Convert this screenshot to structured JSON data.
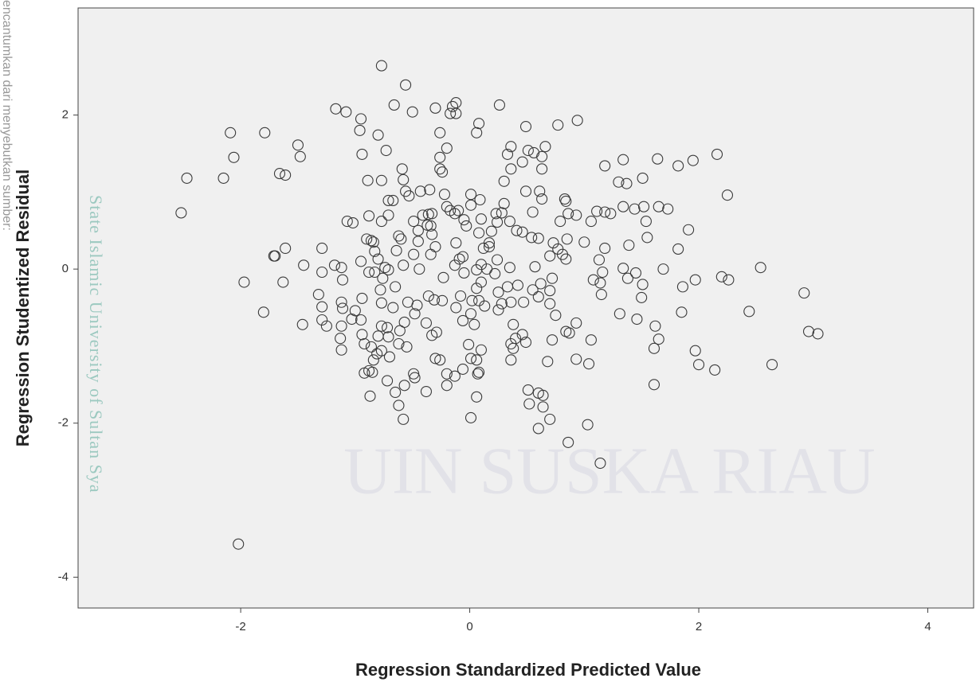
{
  "chart_data": {
    "type": "scatter",
    "x_label": "Regression Standardized Predicted Value",
    "y_label": "Regression Studentized Residual",
    "annotations": [
      "State Islamic University of Sultan Sya",
      "UIN SUSKA RIAU",
      "encantumkan dari menyebutkan sumber:"
    ],
    "xlim": [
      -3.42,
      4.4
    ],
    "ylim": [
      -4.4,
      3.39
    ],
    "xticks": [
      -2,
      0,
      2,
      4
    ],
    "yticks": [
      -4,
      -2,
      0,
      2
    ],
    "marker_color": "#3a3a3a",
    "background_color": "#f0f0f0",
    "x": [
      -2.52,
      -2.47,
      -2.15,
      -2.09,
      -2.06,
      -1.79,
      -1.5,
      -1.48,
      -1.66,
      -1.61,
      -1.97,
      -1.8,
      -2.02,
      -1.7,
      -1.71,
      -1.61,
      -1.63,
      -1.45,
      -1.46,
      -1.29,
      -1.29,
      -1.32,
      -1.29,
      -1.29,
      -1.18,
      -1.12,
      -1.11,
      -1.12,
      -1.12,
      -1.13,
      -1.12,
      -1.07,
      -1.02,
      -1.17,
      -1.08,
      -0.95,
      -0.96,
      -0.94,
      -0.89,
      -0.8,
      -0.73,
      -0.77,
      -0.56,
      -0.66,
      -0.5,
      -0.3,
      -0.15,
      -0.12,
      -0.17,
      -0.12,
      0.08,
      0.06,
      0.26,
      0.49,
      0.77,
      0.94,
      -0.26,
      -0.2,
      -0.26,
      -0.26,
      -0.24,
      -0.59,
      -0.58,
      -0.77,
      -0.71,
      -0.67,
      -0.88,
      -0.77,
      -0.62,
      -0.49,
      -0.41,
      -0.36,
      -0.33,
      -0.43,
      -0.53,
      -0.35,
      -0.22,
      -0.2,
      -0.13,
      -0.05,
      0.01,
      0.01,
      0.09,
      0.19,
      0.08,
      -0.03,
      0.23,
      0.28,
      0.35,
      0.3,
      0.36,
      0.36,
      0.33,
      0.46,
      0.51,
      0.56,
      0.66,
      0.63,
      0.63,
      0.49,
      0.61,
      0.63,
      0.55,
      0.41,
      0.46,
      0.54,
      0.6,
      0.7,
      0.73,
      0.83,
      0.84,
      0.86,
      0.93,
      0.79,
      0.85,
      0.81,
      0.84,
      0.77,
      1.0,
      1.06,
      1.11,
      1.18,
      1.18,
      1.23,
      1.34,
      1.44,
      1.52,
      1.3,
      1.37,
      1.34,
      1.51,
      1.64,
      1.54,
      1.65,
      1.73,
      1.55,
      1.39,
      1.82,
      1.95,
      2.16,
      1.91,
      2.25,
      1.82,
      1.69,
      1.51,
      1.5,
      1.45,
      1.38,
      1.34,
      1.16,
      1.13,
      1.18,
      1.08,
      1.14,
      1.15,
      1.31,
      1.46,
      1.62,
      1.65,
      1.61,
      1.61,
      1.86,
      1.97,
      1.85,
      2.2,
      2.26,
      2.54,
      2.44,
      1.97,
      2.0,
      2.14,
      2.64,
      2.92,
      2.96,
      3.04,
      1.14,
      1.03,
      0.86,
      1.04,
      1.06,
      0.93,
      0.93,
      0.84,
      0.87,
      0.75,
      0.72,
      0.68,
      0.7,
      0.7,
      0.72,
      0.62,
      0.55,
      0.6,
      0.57,
      0.7,
      0.6,
      0.51,
      0.6,
      0.64,
      0.52,
      0.64,
      0.46,
      0.4,
      0.49,
      0.36,
      0.38,
      0.36,
      0.38,
      0.47,
      0.36,
      0.28,
      0.25,
      0.25,
      0.33,
      0.35,
      0.42,
      0.22,
      0.1,
      0.06,
      0.15,
      0.1,
      0.24,
      0.17,
      0.08,
      0.02,
      0.13,
      0.01,
      0.04,
      -0.12,
      -0.06,
      -0.08,
      -0.05,
      -0.01,
      0.01,
      0.06,
      0.1,
      0.08,
      0.07,
      0.06,
      0.01,
      -0.06,
      -0.13,
      -0.2,
      -0.2,
      -0.26,
      -0.3,
      -0.29,
      -0.33,
      -0.38,
      -0.38,
      -0.24,
      -0.31,
      -0.36,
      -0.46,
      -0.54,
      -0.48,
      -0.57,
      -0.61,
      -0.62,
      -0.55,
      -0.49,
      -0.48,
      -0.57,
      -0.62,
      -0.58,
      -0.65,
      -0.72,
      -0.7,
      -0.77,
      -0.81,
      -0.86,
      -0.84,
      -0.88,
      -0.92,
      -0.85,
      -0.87,
      -0.77,
      -0.72,
      -0.8,
      -0.71,
      -0.94,
      -0.92,
      -0.95,
      -1.03,
      -1.0,
      -0.94,
      -0.77,
      -0.78,
      -0.76,
      -0.71,
      -0.74,
      -0.67,
      -0.65,
      -0.58,
      -0.64,
      -0.6,
      -0.49,
      -0.44,
      -0.34,
      -0.3,
      -0.23,
      -0.13,
      -0.09,
      -0.12,
      -0.8,
      -0.83,
      -0.9,
      -0.86,
      -0.84,
      -0.95,
      -0.88,
      -0.83,
      -0.71,
      -0.56,
      -0.37,
      -0.33,
      -0.45,
      -0.34,
      -0.45,
      -0.17,
      -0.1,
      0.17,
      -0.06,
      0.06,
      0.12,
      0.24,
      0.3,
      0.1,
      -1.11,
      -1.25
    ],
    "values": [
      0.73,
      1.18,
      1.18,
      1.77,
      1.45,
      1.77,
      1.61,
      1.46,
      1.24,
      1.22,
      -0.17,
      -0.56,
      -3.57,
      0.17,
      0.17,
      0.27,
      -0.17,
      0.05,
      -0.72,
      0.27,
      -0.04,
      -0.33,
      -0.49,
      -0.66,
      0.05,
      0.02,
      -0.14,
      -0.43,
      -0.74,
      -0.9,
      -1.05,
      0.62,
      0.6,
      2.08,
      2.04,
      1.95,
      1.8,
      1.49,
      1.15,
      1.74,
      1.54,
      2.64,
      2.39,
      2.13,
      2.04,
      2.09,
      2.11,
      2.16,
      2.02,
      2.02,
      1.89,
      1.77,
      2.13,
      1.85,
      1.87,
      1.93,
      1.77,
      1.57,
      1.45,
      1.3,
      1.26,
      1.3,
      1.16,
      1.15,
      0.89,
      0.89,
      0.69,
      0.62,
      0.43,
      0.62,
      0.7,
      0.71,
      0.72,
      1.01,
      0.95,
      1.03,
      0.97,
      0.81,
      0.72,
      0.64,
      0.97,
      0.83,
      0.9,
      0.49,
      0.47,
      0.56,
      0.72,
      0.73,
      0.62,
      1.14,
      1.3,
      1.59,
      1.49,
      1.39,
      1.54,
      1.51,
      1.59,
      1.46,
      1.3,
      1.01,
      1.01,
      0.91,
      0.74,
      0.5,
      0.48,
      0.41,
      0.4,
      0.17,
      0.34,
      0.91,
      0.88,
      0.72,
      0.7,
      0.62,
      0.39,
      0.19,
      0.13,
      0.26,
      0.35,
      0.62,
      0.75,
      0.74,
      1.34,
      0.72,
      0.81,
      0.78,
      0.81,
      1.13,
      1.11,
      1.42,
      1.18,
      1.43,
      0.62,
      0.81,
      0.78,
      0.41,
      0.31,
      1.34,
      1.41,
      1.49,
      0.51,
      0.96,
      0.26,
      0.0,
      -0.2,
      -0.37,
      -0.05,
      -0.12,
      0.01,
      -0.04,
      0.12,
      0.27,
      -0.14,
      -0.18,
      -0.33,
      -0.58,
      -0.65,
      -0.74,
      -0.91,
      -1.03,
      -1.5,
      -0.23,
      -0.14,
      -0.56,
      -0.1,
      -0.14,
      0.02,
      -0.55,
      -1.06,
      -1.24,
      -1.31,
      -1.24,
      -0.31,
      -0.81,
      -0.84,
      -2.52,
      -2.02,
      -2.25,
      -1.23,
      -0.92,
      -1.17,
      -0.7,
      -0.81,
      -0.83,
      -0.6,
      -0.92,
      -1.2,
      -0.45,
      -0.28,
      -0.12,
      -0.19,
      -0.27,
      -0.36,
      0.03,
      -1.95,
      -2.07,
      -1.57,
      -1.61,
      -1.64,
      -1.75,
      -1.79,
      -0.85,
      -0.9,
      -0.95,
      -0.97,
      -1.03,
      -1.18,
      -0.72,
      -0.43,
      -0.43,
      -0.45,
      -0.53,
      -0.3,
      -0.23,
      0.02,
      -0.21,
      -0.06,
      -0.17,
      -0.25,
      0.0,
      0.06,
      0.12,
      0.29,
      -0.41,
      -0.41,
      -0.48,
      -0.58,
      -0.72,
      -0.5,
      -0.67,
      -0.35,
      -0.05,
      -0.98,
      -1.16,
      -1.18,
      -1.05,
      -1.34,
      -1.36,
      -1.66,
      -1.93,
      -1.3,
      -1.39,
      -1.36,
      -1.51,
      -1.18,
      -1.16,
      -0.82,
      -0.86,
      -0.7,
      -1.59,
      -0.41,
      -0.4,
      -0.35,
      -0.47,
      -0.43,
      -0.58,
      -0.69,
      -0.8,
      -0.97,
      -1.01,
      -1.36,
      -1.41,
      -1.51,
      -1.77,
      -1.95,
      -1.6,
      -1.45,
      -1.14,
      -1.06,
      -1.1,
      -1.01,
      -1.18,
      -1.32,
      -1.35,
      -1.34,
      -1.65,
      -0.74,
      -0.76,
      -0.87,
      -0.88,
      -0.85,
      -0.97,
      -0.66,
      -0.65,
      -0.54,
      -0.38,
      -0.44,
      -0.27,
      -0.12,
      -0.01,
      0.02,
      -0.5,
      -0.23,
      0.05,
      0.24,
      0.39,
      0.19,
      0.0,
      0.19,
      0.29,
      -0.11,
      0.05,
      0.13,
      0.34,
      0.13,
      0.23,
      0.39,
      0.37,
      0.35,
      0.1,
      -0.04,
      -0.04,
      0.7,
      1.01,
      0.57,
      0.45,
      0.5,
      0.56,
      0.36,
      0.76,
      0.76,
      0.34,
      0.16,
      -0.01,
      0.27,
      0.61,
      0.85,
      0.65,
      -0.51,
      -0.74
    ]
  }
}
